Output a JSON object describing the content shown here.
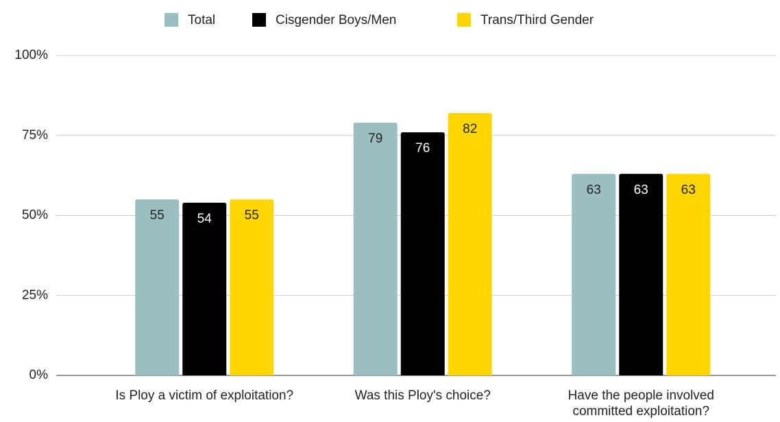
{
  "chart_data": {
    "type": "bar",
    "categories": [
      "Is Ploy a victim of exploitation?",
      "Was this Ploy's choice?",
      "Have the people involved committed exploitation?"
    ],
    "series": [
      {
        "name": "Total",
        "color": "#9bbfc0",
        "values": [
          55,
          79,
          63
        ]
      },
      {
        "name": "Cisgender Boys/Men",
        "color": "#000000",
        "values": [
          54,
          76,
          63
        ]
      },
      {
        "name": "Trans/Third Gender",
        "color": "#ffd600",
        "values": [
          55,
          82,
          63
        ]
      }
    ],
    "ylim": [
      0,
      100
    ],
    "yticks": [
      {
        "value": 0,
        "label": "0%"
      },
      {
        "value": 25,
        "label": "25%"
      },
      {
        "value": 50,
        "label": "50%"
      },
      {
        "value": 75,
        "label": "75%"
      },
      {
        "value": 100,
        "label": "100%"
      }
    ],
    "grid": true,
    "legend": "top"
  }
}
